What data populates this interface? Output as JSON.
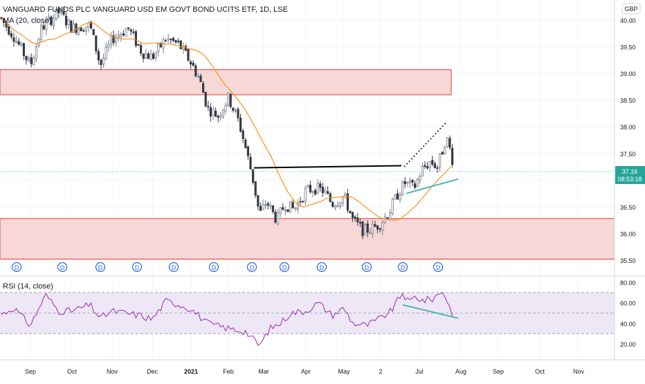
{
  "header": {
    "title": "VANGUARD FUNDS PLC VANGUARD USD EM GOVT BOND UCITS ETF, 1D, LSE",
    "indicator": "MA (20, close)",
    "rsi_label": "RSI (14, close)",
    "currency": "GBP"
  },
  "last_price": {
    "value": "37.16",
    "countdown": "08:53:18"
  },
  "colors": {
    "up": "#26a69a",
    "down": "#ef5350",
    "candle_body": "#363a45",
    "ma_line": "#f7931a",
    "zone_fill": "#f8d7d7",
    "zone_border": "#e53935",
    "rsi_line": "#9c27b0",
    "rsi_band": "#ede7f6",
    "trend": "#000000",
    "teal": "#4db6ac",
    "price_tag": "#26a69a"
  },
  "chart_data": [
    {
      "type": "candlestick",
      "x_labels": [
        "Sep",
        "Oct",
        "Nov",
        "Dec",
        "2021",
        "Feb",
        "Mar",
        "Apr",
        "May",
        "2",
        "Jul",
        "Aug",
        "Sep",
        "Oct",
        "Nov"
      ],
      "y_ticks": [
        "40.00",
        "39.50",
        "39.00",
        "38.50",
        "38.00",
        "37.50",
        "37.00",
        "36.50",
        "36.00",
        "35.50"
      ],
      "ylim": [
        35.45,
        40.35
      ],
      "series_close_approx": [
        [
          "Aug",
          40.05
        ],
        [
          "Sep",
          39.85
        ],
        [
          "Oct",
          39.95
        ],
        [
          "Nov",
          39.55
        ],
        [
          "Dec",
          39.45
        ],
        [
          "2021",
          39.15
        ],
        [
          "Feb",
          38.4
        ],
        [
          "Mar",
          36.5
        ],
        [
          "Apr",
          37.05
        ],
        [
          "May",
          36.1
        ],
        [
          "2",
          36.3
        ],
        [
          "Jun",
          37.1
        ],
        [
          "Jul",
          37.4
        ],
        [
          "Jul-end",
          37.16
        ]
      ],
      "resistance_zones": [
        [
          38.6,
          39.07
        ],
        [
          35.52,
          36.28
        ]
      ],
      "dividend_markers": [
        "D",
        "D",
        "D",
        "D",
        "D",
        "D",
        "D",
        "D",
        "D",
        "D",
        "D",
        "D"
      ],
      "trend_lines": [
        "neckline 37.23",
        "rising wedge upper",
        "rising wedge lower"
      ]
    },
    {
      "type": "line",
      "name": "RSI (14, close)",
      "y_ticks": [
        "80.00",
        "60.00",
        "40.00",
        "20.00"
      ],
      "ylim": [
        10,
        85
      ],
      "band": [
        30,
        70
      ]
    }
  ]
}
